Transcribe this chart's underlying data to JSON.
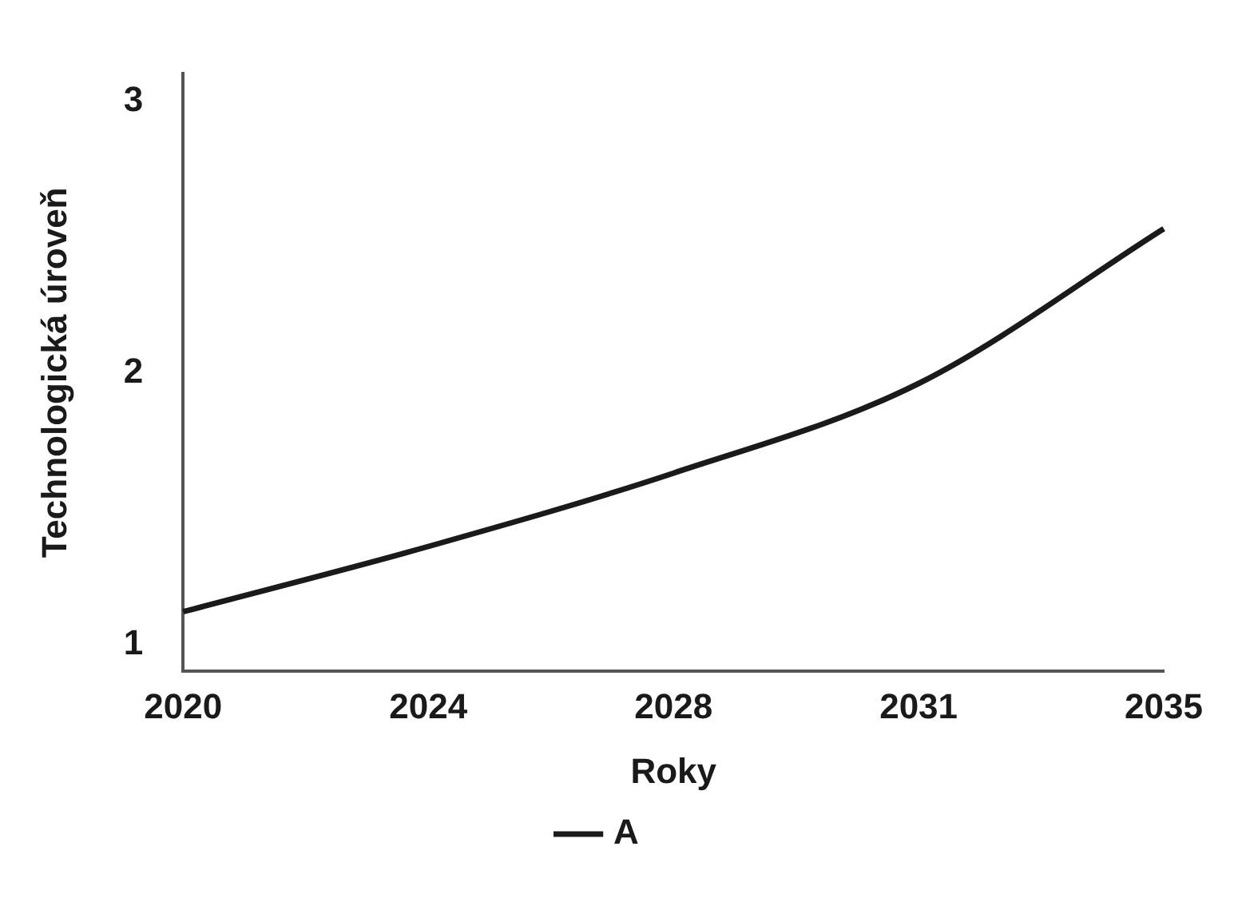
{
  "chart_data": {
    "type": "line",
    "xlabel": "Roky",
    "ylabel": "Technologická úroveň",
    "categories": [
      "2020",
      "2024",
      "2028",
      "2031",
      "2035"
    ],
    "series": [
      {
        "name": "A",
        "color": "#1a1a1a",
        "values": [
          1.12,
          1.36,
          1.63,
          1.96,
          2.53
        ]
      }
    ],
    "ylim": [
      0.9,
      3.1
    ],
    "yticks": [
      1,
      2,
      3
    ],
    "grid": false,
    "legend": "bottom",
    "marker": "none",
    "line_style": "solid"
  }
}
